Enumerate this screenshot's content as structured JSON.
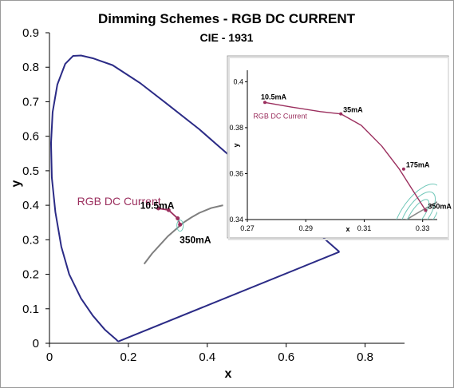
{
  "chart_data": [
    {
      "type": "line",
      "title": "Dimming Schemes - RGB DC CURRENT",
      "subtitle": "CIE - 1931",
      "xlabel": "x",
      "ylabel": "y",
      "xlim": [
        0,
        0.9
      ],
      "ylim": [
        0,
        0.9
      ],
      "xticks": [
        0,
        0.2,
        0.4,
        0.6,
        0.8
      ],
      "xtick_labels": [
        "0",
        "0.2",
        "0.4",
        "0.6",
        "0.8"
      ],
      "yticks": [
        0,
        0.1,
        0.2,
        0.3,
        0.4,
        0.5,
        0.6,
        0.7,
        0.8,
        0.9
      ],
      "ytick_labels": [
        "0",
        "0.1",
        "0.2",
        "0.3",
        "0.4",
        "0.5",
        "0.6",
        "0.7",
        "0.8",
        "0.9"
      ],
      "grid": false,
      "series": [
        {
          "kind": "spectral-locus",
          "color": "#2b2b86",
          "x": [
            0.174,
            0.17,
            0.16,
            0.14,
            0.11,
            0.08,
            0.05,
            0.03,
            0.015,
            0.006,
            0.004,
            0.008,
            0.02,
            0.04,
            0.06,
            0.08,
            0.11,
            0.16,
            0.23,
            0.3,
            0.38,
            0.45,
            0.52,
            0.59,
            0.66,
            0.735
          ],
          "y": [
            0.005,
            0.01,
            0.02,
            0.04,
            0.08,
            0.13,
            0.2,
            0.28,
            0.38,
            0.48,
            0.58,
            0.67,
            0.75,
            0.81,
            0.833,
            0.834,
            0.826,
            0.806,
            0.754,
            0.692,
            0.62,
            0.55,
            0.48,
            0.41,
            0.34,
            0.265
          ]
        },
        {
          "kind": "purple-line",
          "color": "#2b2b86",
          "x": [
            0.735,
            0.174
          ],
          "y": [
            0.265,
            0.005
          ]
        },
        {
          "kind": "planckian-locus",
          "color": "#7f7f7f",
          "x": [
            0.24,
            0.26,
            0.28,
            0.3,
            0.32,
            0.34,
            0.36,
            0.38,
            0.41,
            0.44
          ],
          "y": [
            0.23,
            0.26,
            0.285,
            0.31,
            0.33,
            0.35,
            0.365,
            0.378,
            0.392,
            0.4
          ]
        },
        {
          "name": "RGB DC Current",
          "color": "#9b2f5e",
          "x": [
            0.276,
            0.302,
            0.325,
            0.331
          ],
          "y": [
            0.391,
            0.386,
            0.362,
            0.344
          ]
        }
      ],
      "annotations": [
        {
          "text": "RGB DC Current",
          "x": 0.07,
          "y": 0.4,
          "color": "#9b2f5e"
        },
        {
          "text": "10.5mA",
          "x": 0.23,
          "y": 0.39
        },
        {
          "text": "350mA",
          "x": 0.33,
          "y": 0.29
        }
      ]
    },
    {
      "type": "line",
      "xlabel": "x",
      "ylabel": "y",
      "xlim": [
        0.27,
        0.335
      ],
      "ylim": [
        0.34,
        0.405
      ],
      "xticks": [
        0.27,
        0.29,
        0.31,
        0.33
      ],
      "xtick_labels": [
        "0.27",
        "0.29",
        "0.31",
        "0.33"
      ],
      "yticks": [
        0.34,
        0.36,
        0.38,
        0.4
      ],
      "ytick_labels": [
        "0.34",
        "0.36",
        "0.38",
        "0.4"
      ],
      "grid": false,
      "series": [
        {
          "name": "RGB DC Current",
          "color": "#9b2f5e",
          "x": [
            0.276,
            0.285,
            0.295,
            0.302,
            0.309,
            0.316,
            0.322,
            0.326,
            0.329,
            0.331
          ],
          "y": [
            0.391,
            0.389,
            0.387,
            0.386,
            0.381,
            0.372,
            0.362,
            0.354,
            0.348,
            0.344
          ]
        },
        {
          "kind": "tolerance-ellipses",
          "color": "#6fc7b8",
          "center": [
            0.331,
            0.344
          ]
        }
      ],
      "points": [
        {
          "label": "10.5mA",
          "x": 0.276,
          "y": 0.391
        },
        {
          "label": "35mA",
          "x": 0.302,
          "y": 0.386
        },
        {
          "label": "175mA",
          "x": 0.3235,
          "y": 0.362
        },
        {
          "label": "350mA",
          "x": 0.331,
          "y": 0.344
        }
      ],
      "annotations": [
        {
          "text": "RGB DC Current",
          "x": 0.272,
          "y": 0.384,
          "color": "#9b2f5e"
        }
      ]
    }
  ]
}
